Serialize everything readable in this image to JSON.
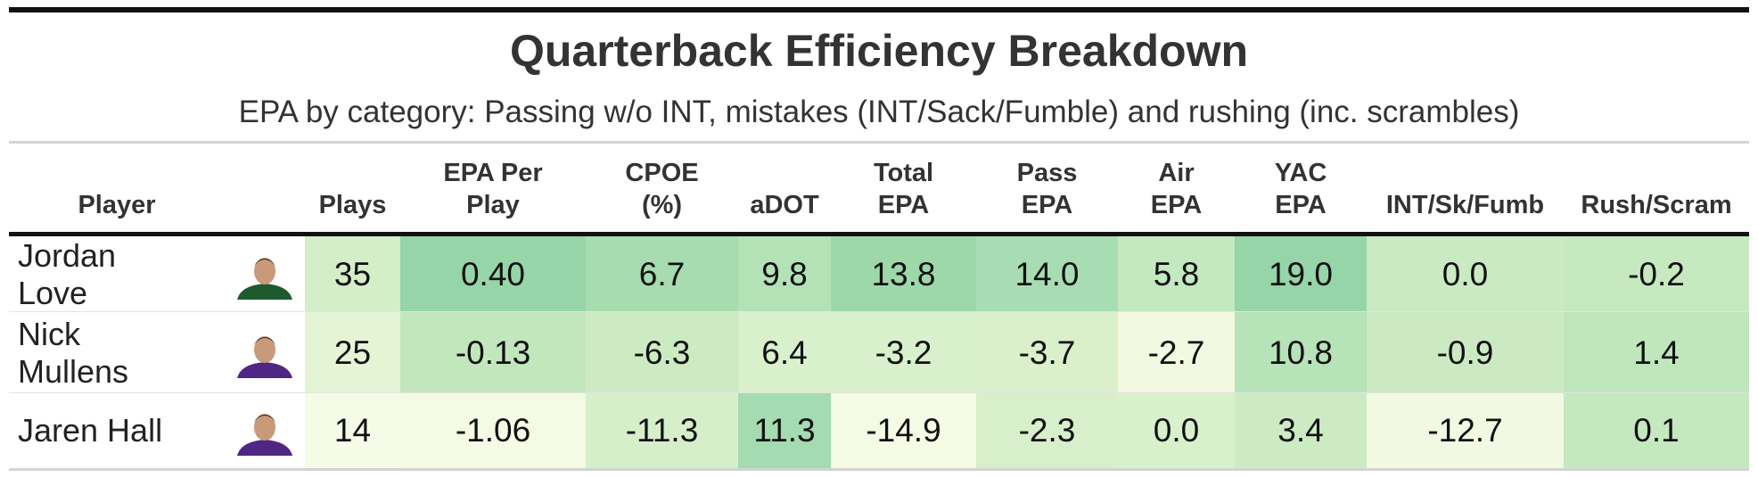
{
  "header": {
    "title": "Quarterback Efficiency Breakdown",
    "subtitle": "EPA by category: Passing w/o INT, mistakes (INT/Sack/Fumble) and rushing (inc. scrambles)"
  },
  "table": {
    "columns": [
      "Player",
      "Plays",
      "EPA Per\nPlay",
      "CPOE\n(%)",
      "aDOT",
      "Total\nEPA",
      "Pass\nEPA",
      "Air\nEPA",
      "YAC\nEPA",
      "INT/Sk/Fumb",
      "Rush/Scram"
    ],
    "rows": [
      [
        "Jordan Love",
        "35",
        "0.40",
        "6.7",
        "9.8",
        "13.8",
        "14.0",
        "5.8",
        "19.0",
        "0.0",
        "-0.2"
      ],
      [
        "Nick Mullens",
        "25",
        "-0.13",
        "-6.3",
        "6.4",
        "-3.2",
        "-3.7",
        "-2.7",
        "10.8",
        "-0.9",
        "1.4"
      ],
      [
        "Jaren Hall",
        "14",
        "-1.06",
        "-11.3",
        "11.3",
        "-14.9",
        "-2.3",
        "0.0",
        "3.4",
        "-12.7",
        "0.1"
      ]
    ],
    "cell_colors": [
      [
        "#d4eec8",
        "#95d5a8",
        "#a6dcb0",
        "#b4e2b7",
        "#9dd8ab",
        "#a8ddb3",
        "#c4e8bf",
        "#95d5a8",
        "#c9eac2",
        "#c6e9c0"
      ],
      [
        "#e6f4d6",
        "#c2e7bd",
        "#cdebc3",
        "#d8f0cb",
        "#d8f0cb",
        "#d9f0cb",
        "#f2f9e0",
        "#b6e3b7",
        "#cbeac3",
        "#c0e6bc"
      ],
      [
        "#f5fbe6",
        "#f4fae4",
        "#d6efca",
        "#a4dbb0",
        "#f4fae4",
        "#d7efca",
        "#d9f0cc",
        "#ccebc3",
        "#f2f9e2",
        "#c5e8bf"
      ]
    ]
  }
}
